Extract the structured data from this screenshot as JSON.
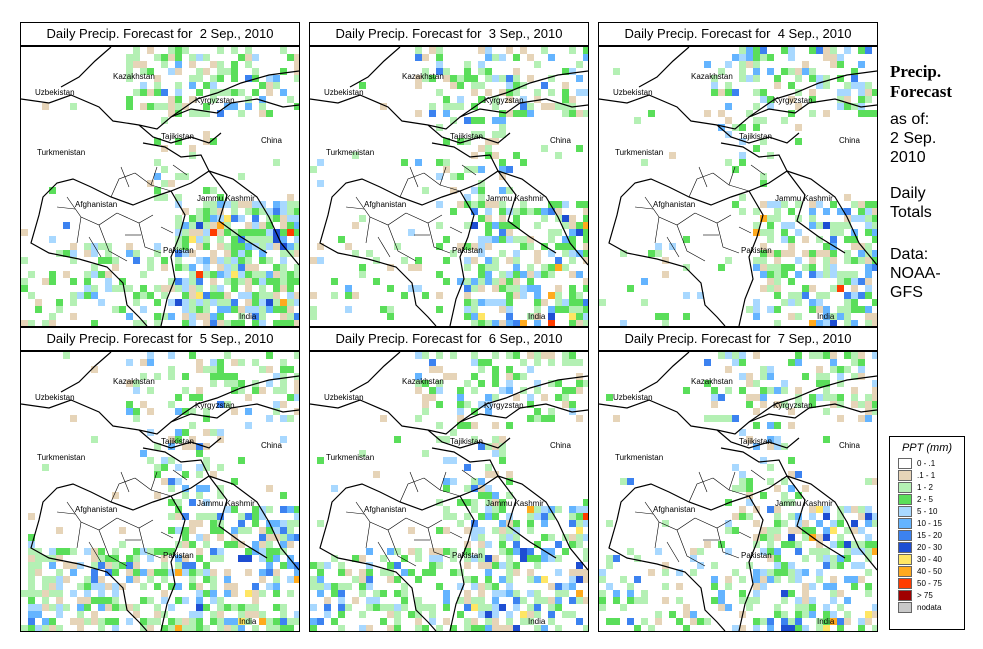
{
  "panels": [
    {
      "title": "Daily Precip. Forecast for  2 Sep., 2010",
      "seed": 11,
      "bias": {
        "sw": 0.35,
        "se": 0.75,
        "n": 0.45,
        "c": 0.15
      }
    },
    {
      "title": "Daily Precip. Forecast for  3 Sep., 2010",
      "seed": 23,
      "bias": {
        "sw": 0.15,
        "se": 0.6,
        "n": 0.4,
        "c": 0.3
      }
    },
    {
      "title": "Daily Precip. Forecast for  4 Sep., 2010",
      "seed": 37,
      "bias": {
        "sw": 0.05,
        "se": 0.55,
        "n": 0.35,
        "c": 0.15
      }
    },
    {
      "title": "Daily Precip. Forecast for  5 Sep., 2010",
      "seed": 41,
      "bias": {
        "sw": 0.55,
        "se": 0.6,
        "n": 0.3,
        "c": 0.3
      }
    },
    {
      "title": "Daily Precip. Forecast for  6 Sep., 2010",
      "seed": 53,
      "bias": {
        "sw": 0.45,
        "se": 0.55,
        "n": 0.35,
        "c": 0.3
      }
    },
    {
      "title": "Daily Precip. Forecast for  7 Sep., 2010",
      "seed": 67,
      "bias": {
        "sw": 0.25,
        "se": 0.45,
        "n": 0.35,
        "c": 0.2
      }
    }
  ],
  "map_labels": {
    "kazakhstan": "Kazakhstan",
    "uzbekistan": "Uzbekistan",
    "kyrgyzstan": "Kyrgyzstan",
    "tajikistan": "Tajikistan",
    "china": "China",
    "turkmenistan": "Turkmenistan",
    "jammu_kashmir": "Jammu Kashmir",
    "afghanistan": "Afghanistan",
    "pakistan": "Pakistan",
    "india": "India"
  },
  "sidebar": {
    "title_line1": "Precip.",
    "title_line2": "Forecast",
    "asof_line1": "as of:",
    "asof_line2": "2 Sep.",
    "asof_line3": "2010",
    "totals_line1": "Daily",
    "totals_line2": "Totals",
    "data_line1": "Data:",
    "data_line2": "NOAA-",
    "data_line3": "GFS"
  },
  "legend": {
    "title": "PPT (mm)",
    "items": [
      {
        "label": "0 - .1",
        "color": "#ffffff"
      },
      {
        "label": ".1 - 1",
        "color": "#e6d4b8"
      },
      {
        "label": "1 - 2",
        "color": "#b4f0b4"
      },
      {
        "label": "2 - 5",
        "color": "#5ade5a"
      },
      {
        "label": "5 - 10",
        "color": "#a8d8ff"
      },
      {
        "label": "10 - 15",
        "color": "#64b4ff"
      },
      {
        "label": "15 - 20",
        "color": "#3c82f0"
      },
      {
        "label": "20 - 30",
        "color": "#1e4ed2"
      },
      {
        "label": "30 - 40",
        "color": "#ffe664"
      },
      {
        "label": "40 - 50",
        "color": "#ffaa1e"
      },
      {
        "label": "50 - 75",
        "color": "#ff3c00"
      },
      {
        "label": "> 75",
        "color": "#a00000"
      },
      {
        "label": "nodata",
        "color": "#c8c8c8"
      }
    ]
  }
}
